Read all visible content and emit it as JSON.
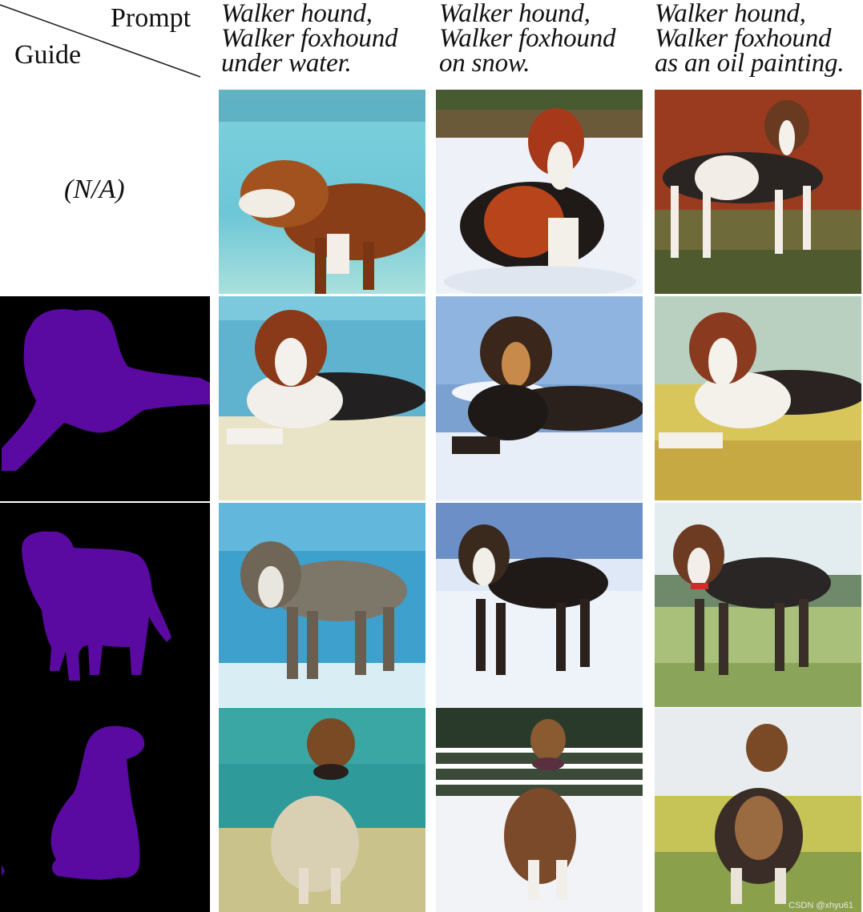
{
  "header": {
    "corner_prompt": "Prompt",
    "corner_guide": "Guide",
    "prompts": [
      {
        "lines": [
          "Walker hound,",
          "Walker foxhound",
          "under water."
        ]
      },
      {
        "lines": [
          "Walker hound,",
          "Walker foxhound",
          "on snow."
        ]
      },
      {
        "lines": [
          "Walker hound,",
          "Walker foxhound",
          "as an oil painting."
        ]
      }
    ]
  },
  "rows": [
    {
      "guide": "(N/A)"
    },
    {
      "guide": ""
    },
    {
      "guide": ""
    },
    {
      "guide": ""
    }
  ],
  "watermark": "CSDN @xhyu61",
  "colors": {
    "mask": "#5a0aa0",
    "guide_bg": "#000000",
    "water": "#4fb3c9",
    "snow": "#eef2f8",
    "painting_red": "#9a3a1e",
    "grass": "#d9c65a"
  }
}
